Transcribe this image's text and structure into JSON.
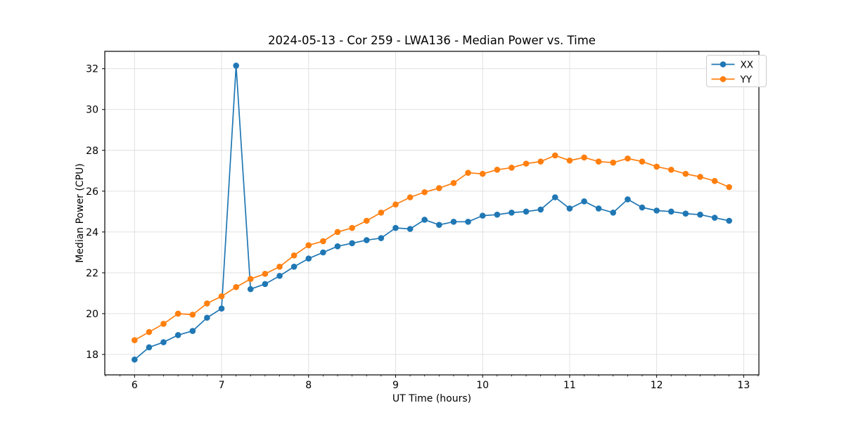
{
  "chart_data": {
    "type": "line",
    "title": "2024-05-13 - Cor 259 - LWA136 - Median Power vs. Time",
    "xlabel": "UT Time (hours)",
    "ylabel": "Median Power (CPU)",
    "xlim": [
      5.658,
      13.175
    ],
    "ylim": [
      17.0,
      32.85
    ],
    "xticks": [
      6,
      7,
      8,
      9,
      10,
      11,
      12,
      13
    ],
    "yticks": [
      18,
      20,
      22,
      24,
      26,
      28,
      30,
      32
    ],
    "x_minor_step": 0.1666667,
    "grid": true,
    "grid_color": "#dedede",
    "legend_position": "upper right",
    "x": [
      6.0,
      6.167,
      6.333,
      6.5,
      6.667,
      6.833,
      7.0,
      7.167,
      7.333,
      7.5,
      7.667,
      7.833,
      8.0,
      8.167,
      8.333,
      8.5,
      8.667,
      8.833,
      9.0,
      9.167,
      9.333,
      9.5,
      9.667,
      9.833,
      10.0,
      10.167,
      10.333,
      10.5,
      10.667,
      10.833,
      11.0,
      11.167,
      11.333,
      11.5,
      11.667,
      11.833,
      12.0,
      12.167,
      12.333,
      12.5,
      12.667,
      12.833
    ],
    "series": [
      {
        "name": "XX",
        "color": "#1f77b4",
        "values": [
          17.75,
          18.35,
          18.6,
          18.95,
          19.15,
          19.8,
          20.25,
          32.15,
          21.2,
          21.45,
          21.85,
          22.3,
          22.7,
          23.0,
          23.3,
          23.45,
          23.6,
          23.7,
          24.2,
          24.15,
          24.6,
          24.35,
          24.5,
          24.5,
          24.8,
          24.85,
          24.95,
          25.0,
          25.1,
          25.7,
          25.15,
          25.5,
          25.15,
          24.95,
          25.6,
          25.2,
          25.05,
          25.0,
          24.9,
          24.85,
          24.7,
          24.55
        ]
      },
      {
        "name": "YY",
        "color": "#ff7f0e",
        "values": [
          18.7,
          19.1,
          19.5,
          20.0,
          19.95,
          20.5,
          20.85,
          21.3,
          21.7,
          21.95,
          22.3,
          22.85,
          23.35,
          23.55,
          24.0,
          24.2,
          24.55,
          24.95,
          25.35,
          25.7,
          25.95,
          26.15,
          26.4,
          26.9,
          26.85,
          27.05,
          27.15,
          27.35,
          27.45,
          27.75,
          27.5,
          27.65,
          27.45,
          27.4,
          27.6,
          27.45,
          27.2,
          27.05,
          26.85,
          26.7,
          26.5,
          26.2
        ]
      }
    ]
  }
}
